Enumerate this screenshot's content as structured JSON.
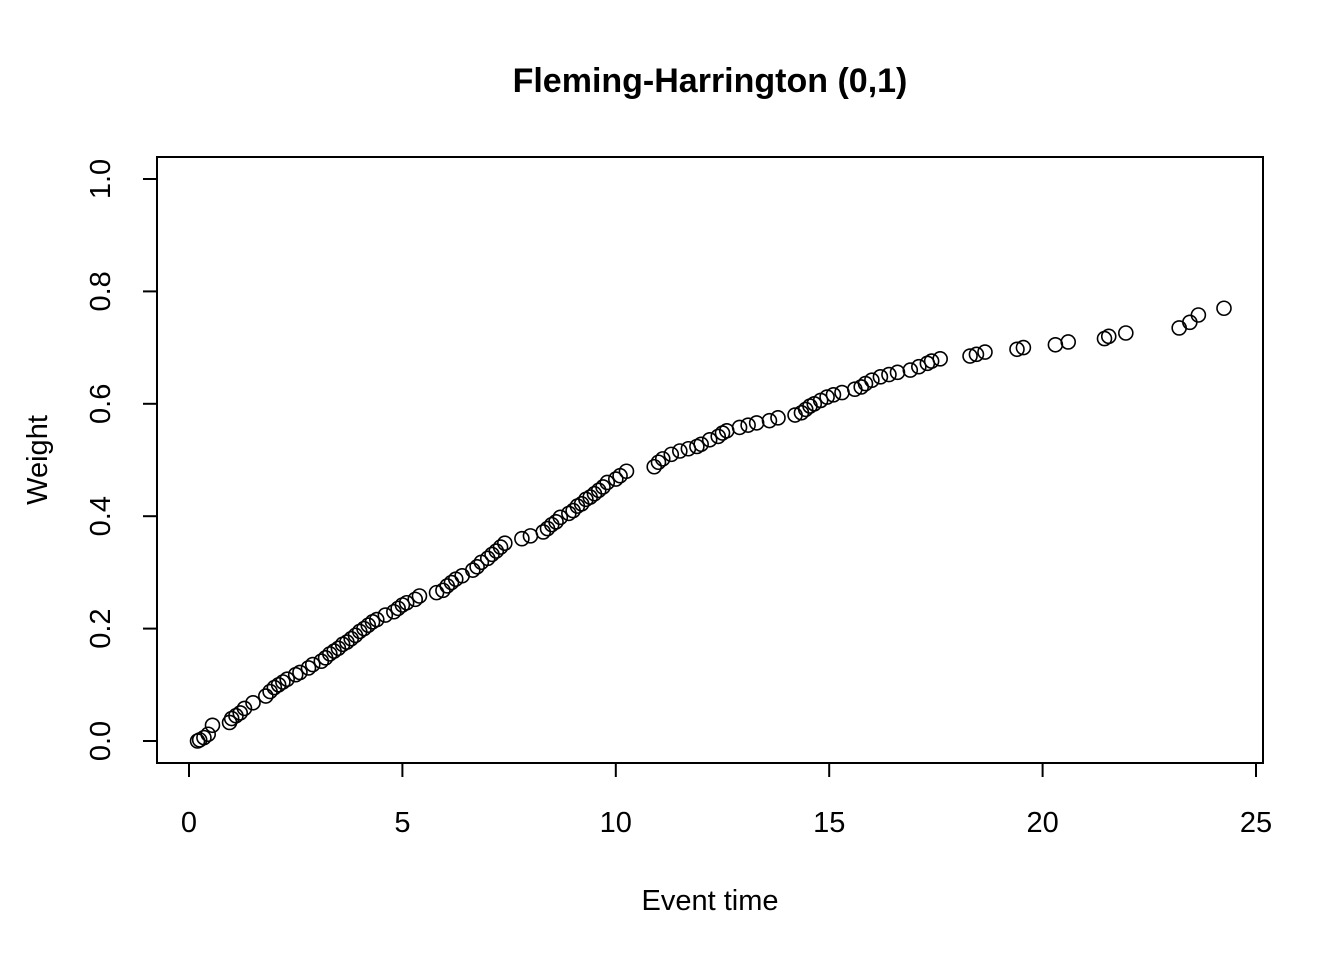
{
  "chart_data": {
    "type": "scatter",
    "title": "Fleming-Harrington (0,1)",
    "xlabel": "Event time",
    "ylabel": "Weight",
    "xlim": [
      0,
      25
    ],
    "ylim": [
      0,
      1
    ],
    "xticks": [
      0,
      5,
      10,
      15,
      20,
      25
    ],
    "yticks": [
      0.0,
      0.2,
      0.4,
      0.6,
      0.8,
      1.0
    ],
    "ytick_labels": [
      "0.0",
      "0.2",
      "0.4",
      "0.6",
      "0.8",
      "1.0"
    ],
    "grid": false,
    "marker": "open-circle",
    "points": [
      [
        0.2,
        0.0
      ],
      [
        0.25,
        0.002
      ],
      [
        0.35,
        0.006
      ],
      [
        0.45,
        0.012
      ],
      [
        0.55,
        0.028
      ],
      [
        0.95,
        0.033
      ],
      [
        1.0,
        0.04
      ],
      [
        1.1,
        0.045
      ],
      [
        1.2,
        0.05
      ],
      [
        1.3,
        0.058
      ],
      [
        1.5,
        0.068
      ],
      [
        1.8,
        0.08
      ],
      [
        1.9,
        0.088
      ],
      [
        2.0,
        0.095
      ],
      [
        2.1,
        0.1
      ],
      [
        2.2,
        0.105
      ],
      [
        2.3,
        0.11
      ],
      [
        2.5,
        0.118
      ],
      [
        2.6,
        0.122
      ],
      [
        2.8,
        0.13
      ],
      [
        2.9,
        0.136
      ],
      [
        3.1,
        0.142
      ],
      [
        3.2,
        0.148
      ],
      [
        3.3,
        0.155
      ],
      [
        3.4,
        0.16
      ],
      [
        3.5,
        0.165
      ],
      [
        3.6,
        0.172
      ],
      [
        3.7,
        0.176
      ],
      [
        3.8,
        0.182
      ],
      [
        3.9,
        0.188
      ],
      [
        4.0,
        0.195
      ],
      [
        4.1,
        0.2
      ],
      [
        4.2,
        0.206
      ],
      [
        4.3,
        0.212
      ],
      [
        4.4,
        0.216
      ],
      [
        4.6,
        0.224
      ],
      [
        4.8,
        0.23
      ],
      [
        4.9,
        0.236
      ],
      [
        5.0,
        0.242
      ],
      [
        5.1,
        0.246
      ],
      [
        5.3,
        0.252
      ],
      [
        5.4,
        0.258
      ],
      [
        5.8,
        0.264
      ],
      [
        5.95,
        0.268
      ],
      [
        6.05,
        0.276
      ],
      [
        6.15,
        0.282
      ],
      [
        6.25,
        0.288
      ],
      [
        6.4,
        0.294
      ],
      [
        6.65,
        0.304
      ],
      [
        6.75,
        0.31
      ],
      [
        6.85,
        0.318
      ],
      [
        7.0,
        0.325
      ],
      [
        7.1,
        0.332
      ],
      [
        7.2,
        0.338
      ],
      [
        7.3,
        0.345
      ],
      [
        7.4,
        0.352
      ],
      [
        7.8,
        0.36
      ],
      [
        8.0,
        0.365
      ],
      [
        8.3,
        0.372
      ],
      [
        8.4,
        0.378
      ],
      [
        8.5,
        0.385
      ],
      [
        8.6,
        0.39
      ],
      [
        8.7,
        0.398
      ],
      [
        8.9,
        0.405
      ],
      [
        9.0,
        0.41
      ],
      [
        9.1,
        0.418
      ],
      [
        9.2,
        0.422
      ],
      [
        9.3,
        0.43
      ],
      [
        9.4,
        0.434
      ],
      [
        9.5,
        0.44
      ],
      [
        9.6,
        0.446
      ],
      [
        9.7,
        0.452
      ],
      [
        9.8,
        0.46
      ],
      [
        10.0,
        0.466
      ],
      [
        10.1,
        0.472
      ],
      [
        10.25,
        0.48
      ],
      [
        10.9,
        0.488
      ],
      [
        11.0,
        0.496
      ],
      [
        11.1,
        0.502
      ],
      [
        11.3,
        0.51
      ],
      [
        11.5,
        0.516
      ],
      [
        11.7,
        0.52
      ],
      [
        11.9,
        0.524
      ],
      [
        12.0,
        0.528
      ],
      [
        12.2,
        0.536
      ],
      [
        12.4,
        0.542
      ],
      [
        12.5,
        0.548
      ],
      [
        12.6,
        0.552
      ],
      [
        12.9,
        0.558
      ],
      [
        13.1,
        0.562
      ],
      [
        13.3,
        0.566
      ],
      [
        13.6,
        0.57
      ],
      [
        13.8,
        0.575
      ],
      [
        14.2,
        0.58
      ],
      [
        14.35,
        0.584
      ],
      [
        14.45,
        0.59
      ],
      [
        14.55,
        0.596
      ],
      [
        14.65,
        0.6
      ],
      [
        14.8,
        0.606
      ],
      [
        14.95,
        0.612
      ],
      [
        15.1,
        0.616
      ],
      [
        15.3,
        0.62
      ],
      [
        15.6,
        0.626
      ],
      [
        15.75,
        0.63
      ],
      [
        15.85,
        0.636
      ],
      [
        16.0,
        0.642
      ],
      [
        16.2,
        0.648
      ],
      [
        16.4,
        0.652
      ],
      [
        16.6,
        0.656
      ],
      [
        16.9,
        0.66
      ],
      [
        17.1,
        0.666
      ],
      [
        17.3,
        0.672
      ],
      [
        17.4,
        0.676
      ],
      [
        17.6,
        0.68
      ],
      [
        18.3,
        0.685
      ],
      [
        18.45,
        0.688
      ],
      [
        18.65,
        0.692
      ],
      [
        19.4,
        0.697
      ],
      [
        19.55,
        0.7
      ],
      [
        20.3,
        0.705
      ],
      [
        20.6,
        0.71
      ],
      [
        21.45,
        0.716
      ],
      [
        21.55,
        0.72
      ],
      [
        21.95,
        0.726
      ],
      [
        23.2,
        0.735
      ],
      [
        23.45,
        0.745
      ],
      [
        23.65,
        0.758
      ],
      [
        24.25,
        0.77
      ]
    ]
  }
}
